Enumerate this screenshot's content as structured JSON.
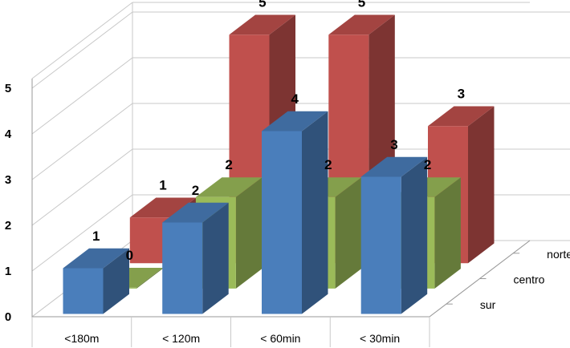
{
  "chart_data": {
    "type": "bar",
    "variant": "3d-clustered-depth",
    "title": "",
    "xlabel": "",
    "ylabel": "",
    "categories": [
      "<180m",
      "< 120m",
      "< 60min",
      "< 30min"
    ],
    "y_ticks": [
      "0",
      "1",
      "2",
      "3",
      "4",
      "5"
    ],
    "ylim": [
      0,
      5
    ],
    "grid": true,
    "legend": "none",
    "series": [
      {
        "name": "sur",
        "values": [
          1,
          2,
          4,
          3
        ],
        "color": "#4a7ebb"
      },
      {
        "name": "centro",
        "values": [
          0,
          2,
          2,
          2
        ],
        "color": "#9bbb59"
      },
      {
        "name": "norte",
        "values": [
          1,
          5,
          5,
          3
        ],
        "color": "#c0504d"
      }
    ]
  }
}
